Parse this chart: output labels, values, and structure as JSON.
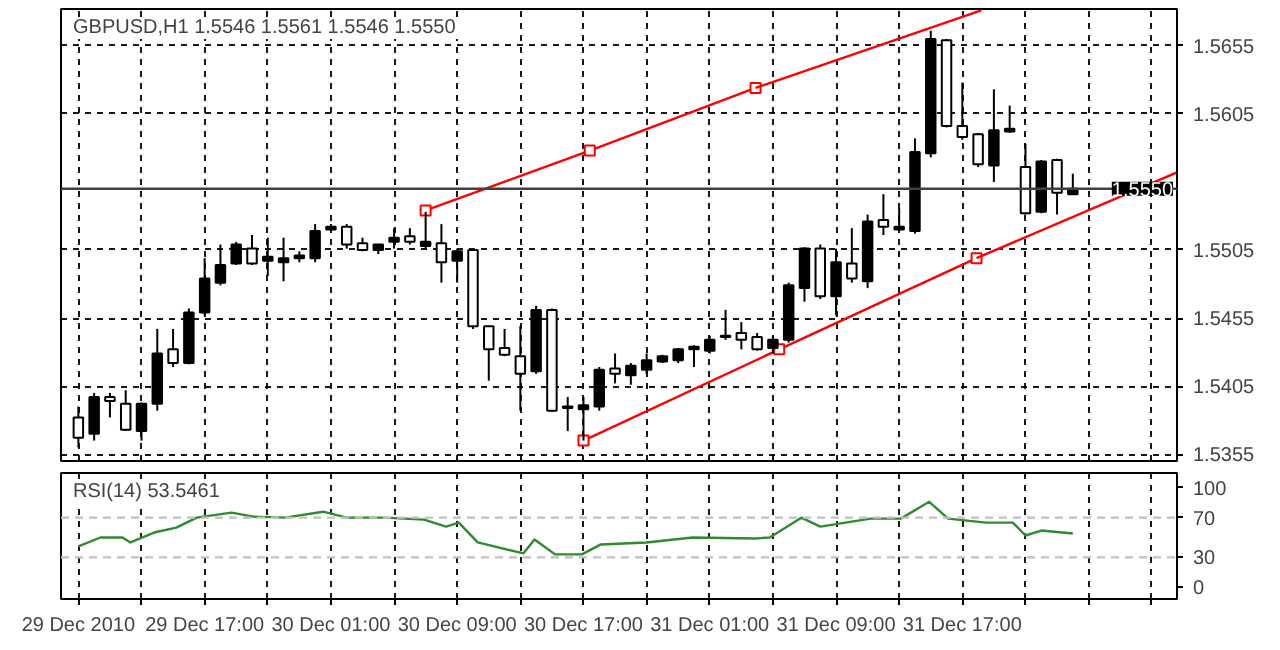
{
  "chart_data": [
    {
      "type": "candlestick",
      "title": "GBPUSD,H1  1.5546 1.5561 1.5546 1.5550",
      "x": [
        "2010-12-29T09:00",
        "2010-12-29T10:00",
        "2010-12-29T11:00",
        "2010-12-29T12:00",
        "2010-12-29T13:00",
        "2010-12-29T14:00",
        "2010-12-29T15:00",
        "2010-12-29T16:00",
        "2010-12-29T17:00",
        "2010-12-29T18:00",
        "2010-12-29T19:00",
        "2010-12-29T20:00",
        "2010-12-29T21:00",
        "2010-12-29T22:00",
        "2010-12-29T23:00",
        "2010-12-30T00:00",
        "2010-12-30T01:00",
        "2010-12-30T02:00",
        "2010-12-30T03:00",
        "2010-12-30T04:00",
        "2010-12-30T05:00",
        "2010-12-30T06:00",
        "2010-12-30T07:00",
        "2010-12-30T08:00",
        "2010-12-30T09:00",
        "2010-12-30T10:00",
        "2010-12-30T11:00",
        "2010-12-30T12:00",
        "2010-12-30T13:00",
        "2010-12-30T14:00",
        "2010-12-30T15:00",
        "2010-12-30T16:00",
        "2010-12-30T17:00",
        "2010-12-30T18:00",
        "2010-12-30T19:00",
        "2010-12-30T20:00",
        "2010-12-30T21:00",
        "2010-12-30T22:00",
        "2010-12-30T23:00",
        "2010-12-31T00:00",
        "2010-12-31T01:00",
        "2010-12-31T02:00",
        "2010-12-31T03:00",
        "2010-12-31T04:00",
        "2010-12-31T05:00",
        "2010-12-31T06:00",
        "2010-12-31T07:00",
        "2010-12-31T08:00",
        "2010-12-31T09:00",
        "2010-12-31T10:00",
        "2010-12-31T11:00",
        "2010-12-31T12:00",
        "2010-12-31T13:00",
        "2010-12-31T14:00",
        "2010-12-31T15:00",
        "2010-12-31T16:00",
        "2010-12-31T17:00",
        "2010-12-31T18:00",
        "2010-12-31T19:00",
        "2010-12-31T20:00",
        "2010-12-31T21:00",
        "2010-12-31T22:00",
        "2010-12-31T23:00",
        "2011-01-01T00:00"
      ],
      "ohlc": [
        [
          1.5382,
          1.539,
          1.536,
          1.5367
        ],
        [
          1.537,
          1.54,
          1.5365,
          1.5397
        ],
        [
          1.5397,
          1.54,
          1.5382,
          1.5394
        ],
        [
          1.5392,
          1.5402,
          1.5372,
          1.5373
        ],
        [
          1.5372,
          1.5393,
          1.5365,
          1.5392
        ],
        [
          1.5392,
          1.5447,
          1.5387,
          1.5429
        ],
        [
          1.5432,
          1.5447,
          1.5419,
          1.5422
        ],
        [
          1.5422,
          1.5462,
          1.5421,
          1.5459
        ],
        [
          1.5459,
          1.5499,
          1.5457,
          1.5484
        ],
        [
          1.5481,
          1.5509,
          1.5479,
          1.5494
        ],
        [
          1.5495,
          1.5511,
          1.5494,
          1.5509
        ],
        [
          1.5506,
          1.5516,
          1.5494,
          1.5495
        ],
        [
          1.5497,
          1.5514,
          1.5486,
          1.55
        ],
        [
          1.5496,
          1.5514,
          1.5482,
          1.5499
        ],
        [
          1.5499,
          1.5504,
          1.5496,
          1.5501
        ],
        [
          1.5499,
          1.5524,
          1.5496,
          1.5519
        ],
        [
          1.552,
          1.5524,
          1.5519,
          1.5522
        ],
        [
          1.5522,
          1.5524,
          1.5506,
          1.5509
        ],
        [
          1.551,
          1.5514,
          1.5504,
          1.5505
        ],
        [
          1.5505,
          1.5509,
          1.5502,
          1.5509
        ],
        [
          1.5511,
          1.5521,
          1.5506,
          1.5514
        ],
        [
          1.5515,
          1.5521,
          1.5509,
          1.5511
        ],
        [
          1.5508,
          1.5533,
          1.5506,
          1.5511
        ],
        [
          1.551,
          1.5524,
          1.5481,
          1.5496
        ],
        [
          1.5497,
          1.5506,
          1.5481,
          1.5504
        ],
        [
          1.5505,
          1.5505,
          1.5447,
          1.5449
        ],
        [
          1.5449,
          1.5449,
          1.5409,
          1.5432
        ],
        [
          1.5433,
          1.5447,
          1.5427,
          1.5428
        ],
        [
          1.5427,
          1.5449,
          1.5387,
          1.5414
        ],
        [
          1.5416,
          1.5464,
          1.5414,
          1.5461
        ],
        [
          1.5461,
          1.5462,
          1.5386,
          1.5387
        ],
        [
          1.5389,
          1.5397,
          1.5372,
          1.539
        ],
        [
          1.5388,
          1.5397,
          1.5365,
          1.5391
        ],
        [
          1.539,
          1.5419,
          1.5387,
          1.5417
        ],
        [
          1.5418,
          1.5429,
          1.5407,
          1.5414
        ],
        [
          1.5413,
          1.5422,
          1.5406,
          1.542
        ],
        [
          1.5417,
          1.5429,
          1.5414,
          1.5424
        ],
        [
          1.5423,
          1.5428,
          1.5422,
          1.5427
        ],
        [
          1.5424,
          1.5433,
          1.5422,
          1.5432
        ],
        [
          1.5432,
          1.5435,
          1.5419,
          1.5434
        ],
        [
          1.5431,
          1.5442,
          1.5429,
          1.5439
        ],
        [
          1.5441,
          1.5461,
          1.5439,
          1.5442
        ],
        [
          1.5444,
          1.5452,
          1.5432,
          1.5439
        ],
        [
          1.5441,
          1.5444,
          1.5431,
          1.5432
        ],
        [
          1.5433,
          1.5442,
          1.5429,
          1.5439
        ],
        [
          1.5439,
          1.5481,
          1.5437,
          1.5479
        ],
        [
          1.5477,
          1.5507,
          1.5467,
          1.5506
        ],
        [
          1.5506,
          1.5509,
          1.5469,
          1.5471
        ],
        [
          1.5471,
          1.5506,
          1.5457,
          1.5496
        ],
        [
          1.5495,
          1.5521,
          1.5481,
          1.5484
        ],
        [
          1.5482,
          1.5531,
          1.5477,
          1.5526
        ],
        [
          1.5527,
          1.5546,
          1.5516,
          1.5522
        ],
        [
          1.552,
          1.5536,
          1.5519,
          1.5522
        ],
        [
          1.5519,
          1.5587,
          1.5517,
          1.5577
        ],
        [
          1.5576,
          1.5666,
          1.5573,
          1.566
        ],
        [
          1.5659,
          1.566,
          1.5595,
          1.5596
        ],
        [
          1.5596,
          1.5628,
          1.5586,
          1.5588
        ],
        [
          1.559,
          1.5591,
          1.5566,
          1.5568
        ],
        [
          1.5567,
          1.5623,
          1.5555,
          1.5593
        ],
        [
          1.5592,
          1.5611,
          1.5591,
          1.5594
        ],
        [
          1.5566,
          1.5583,
          1.5531,
          1.5532
        ],
        [
          1.5533,
          1.5571,
          1.5532,
          1.557
        ],
        [
          1.5571,
          1.5572,
          1.5531,
          1.5547
        ],
        [
          1.5546,
          1.5561,
          1.5546,
          1.555
        ]
      ],
      "colors": [
        "#ffffff",
        "#000000",
        "#ffffff",
        "#ffffff",
        "#000000",
        "#000000",
        "#ffffff",
        "#000000",
        "#000000",
        "#000000",
        "#000000",
        "#ffffff",
        "#000000",
        "#000000",
        "#000000",
        "#000000",
        "#000000",
        "#ffffff",
        "#ffffff",
        "#000000",
        "#000000",
        "#ffffff",
        "#000000",
        "#ffffff",
        "#000000",
        "#ffffff",
        "#ffffff",
        "#ffffff",
        "#ffffff",
        "#000000",
        "#ffffff",
        "#000000",
        "#000000",
        "#000000",
        "#ffffff",
        "#000000",
        "#000000",
        "#000000",
        "#000000",
        "#000000",
        "#000000",
        "#000000",
        "#ffffff",
        "#ffffff",
        "#000000",
        "#000000",
        "#000000",
        "#ffffff",
        "#000000",
        "#ffffff",
        "#000000",
        "#ffffff",
        "#000000",
        "#000000",
        "#000000",
        "#ffffff",
        "#ffffff",
        "#ffffff",
        "#000000",
        "#000000",
        "#ffffff",
        "#000000",
        "#ffffff",
        "#000000"
      ],
      "series": [
        {
          "type": "line",
          "color": "#ff0000",
          "marker": "square",
          "x": [
            "2010-12-30T07:00",
            "2010-12-30T17:24",
            "2010-12-31T03:54"
          ],
          "values": [
            1.5534,
            1.5578,
            1.5624
          ]
        },
        {
          "type": "line",
          "color": "#ff0000",
          "x": [
            "2010-12-31T03:54",
            "2010-12-31T18:12"
          ],
          "values": [
            1.5624,
            1.5681
          ]
        },
        {
          "type": "line",
          "color": "#ff0000",
          "marker": "square",
          "x": [
            "2010-12-30T17:00",
            "2010-12-31T05:24",
            "2010-12-31T17:54"
          ],
          "values": [
            1.5365,
            1.5432,
            1.5499
          ]
        },
        {
          "type": "line",
          "color": "#ff0000",
          "x": [
            "2010-12-31T17:54",
            "2011-01-01T06:36"
          ],
          "values": [
            1.5499,
            1.5562
          ]
        }
      ],
      "ref_lines": [
        {
          "axis": "y",
          "value": 1.555,
          "label": "1.5550",
          "color": "#404040"
        }
      ],
      "xlim": [
        "2010-12-29T07:54",
        "2011-01-01T06:36"
      ],
      "ylim": [
        1.535,
        1.5682
      ],
      "xticks": [
        {
          "value": "2010-12-29T09:00",
          "label": null
        },
        {
          "value": "2010-12-29T13:00",
          "label": null
        },
        {
          "value": "2010-12-29T17:00",
          "label": null
        },
        {
          "value": "2010-12-29T21:00",
          "label": null
        },
        {
          "value": "2010-12-30T01:00",
          "label": null
        },
        {
          "value": "2010-12-30T05:00",
          "label": null
        },
        {
          "value": "2010-12-30T09:00",
          "label": null
        },
        {
          "value": "2010-12-30T13:00",
          "label": null
        },
        {
          "value": "2010-12-30T17:00",
          "label": null
        },
        {
          "value": "2010-12-30T21:00",
          "label": null
        },
        {
          "value": "2010-12-31T01:00",
          "label": null
        },
        {
          "value": "2010-12-31T05:00",
          "label": null
        },
        {
          "value": "2010-12-31T09:00",
          "label": null
        },
        {
          "value": "2010-12-31T13:00",
          "label": null
        },
        {
          "value": "2010-12-31T17:00",
          "label": null
        },
        {
          "value": "2010-12-31T21:00",
          "label": null
        },
        {
          "value": "2011-01-01T01:00",
          "label": null
        },
        {
          "value": "2011-01-01T05:00",
          "label": null
        }
      ],
      "yticks": [
        1.5355,
        1.5405,
        1.5455,
        1.5505,
        1.5605,
        1.5655
      ],
      "grid": true,
      "tick_labels": "y"
    },
    {
      "type": "line",
      "title": "RSI(14) 53.5461",
      "series": [
        {
          "color": "#2e8b2e",
          "x": [
            "2010-12-29T09:00",
            "2010-12-29T10:24",
            "2010-12-29T11:48",
            "2010-12-29T12:18",
            "2010-12-29T13:48",
            "2010-12-29T15:12",
            "2010-12-29T16:30",
            "2010-12-29T18:42",
            "2010-12-29T20:06",
            "2010-12-29T22:06",
            "2010-12-30T00:30",
            "2010-12-30T02:00",
            "2010-12-30T04:24",
            "2010-12-30T06:54",
            "2010-12-30T08:18",
            "2010-12-30T09:06",
            "2010-12-30T10:18",
            "2010-12-30T13:12",
            "2010-12-30T13:54",
            "2010-12-30T15:12",
            "2010-12-30T16:54",
            "2010-12-30T18:06",
            "2010-12-30T21:00",
            "2010-12-30T23:54",
            "2010-12-31T03:54",
            "2010-12-31T04:48",
            "2010-12-31T06:48",
            "2010-12-31T08:00",
            "2010-12-31T11:12",
            "2010-12-31T13:06",
            "2010-12-31T14:54",
            "2010-12-31T16:06",
            "2010-12-31T18:30",
            "2010-12-31T20:12",
            "2010-12-31T21:00",
            "2010-12-31T22:00",
            "2011-01-01T00:00"
          ],
          "values": [
            41,
            50,
            50,
            45,
            55,
            60,
            70,
            75,
            71,
            70,
            76,
            70,
            70,
            68,
            61,
            65,
            45,
            34,
            48,
            33,
            33,
            43,
            45,
            50,
            49,
            50,
            70,
            61,
            69,
            69,
            86,
            69,
            65,
            65,
            52,
            57,
            54
          ]
        }
      ],
      "ref_lines": [
        {
          "axis": "y",
          "value": 70,
          "label": null,
          "color": "#c0c0c0",
          "line_style": "dashed"
        },
        {
          "axis": "y",
          "value": 30,
          "label": null,
          "color": "#c0c0c0",
          "line_style": "dashed"
        }
      ],
      "xlim": [
        "2010-12-29T07:54",
        "2011-01-01T06:36"
      ],
      "ylim": [
        -12,
        115
      ],
      "xticks": [
        {
          "value": "2010-12-29T09:00",
          "label": "29 Dec 2010"
        },
        {
          "value": "2010-12-29T13:00",
          "label": null
        },
        {
          "value": "2010-12-29T17:00",
          "label": "29 Dec 17:00"
        },
        {
          "value": "2010-12-29T21:00",
          "label": null
        },
        {
          "value": "2010-12-30T01:00",
          "label": "30 Dec 01:00"
        },
        {
          "value": "2010-12-30T05:00",
          "label": null
        },
        {
          "value": "2010-12-30T09:00",
          "label": "30 Dec 09:00"
        },
        {
          "value": "2010-12-30T13:00",
          "label": null
        },
        {
          "value": "2010-12-30T17:00",
          "label": "30 Dec 17:00"
        },
        {
          "value": "2010-12-30T21:00",
          "label": null
        },
        {
          "value": "2010-12-31T01:00",
          "label": "31 Dec 01:00"
        },
        {
          "value": "2010-12-31T05:00",
          "label": null
        },
        {
          "value": "2010-12-31T09:00",
          "label": "31 Dec 09:00"
        },
        {
          "value": "2010-12-31T13:00",
          "label": null
        },
        {
          "value": "2010-12-31T17:00",
          "label": "31 Dec 17:00"
        },
        {
          "value": "2010-12-31T21:00",
          "label": null
        },
        {
          "value": "2011-01-01T01:00",
          "label": null
        },
        {
          "value": "2011-01-01T05:00",
          "label": null
        }
      ],
      "yticks": [
        0,
        30,
        70,
        100
      ],
      "grid": "x"
    }
  ]
}
